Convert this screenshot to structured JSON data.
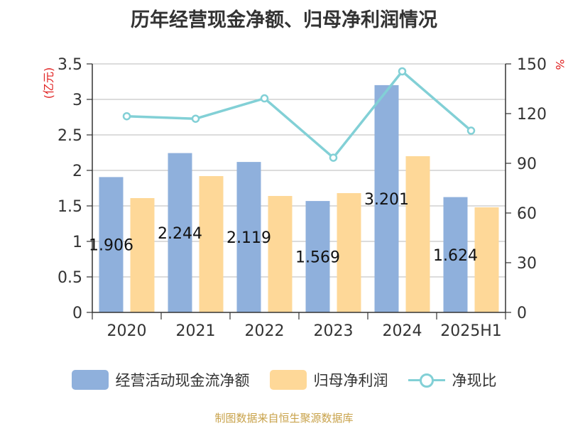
{
  "title": "历年经营现金净额、归母净利润情况",
  "source": "制图数据来自恒生聚源数据库",
  "chart_data": {
    "type": "bar",
    "categories": [
      "2020",
      "2021",
      "2022",
      "2023",
      "2024",
      "2025H1"
    ],
    "series": [
      {
        "name": "经营活动现金流净额",
        "type": "bar",
        "axis": "left",
        "color": "#8fb0dc",
        "values": [
          1.906,
          2.244,
          2.119,
          1.569,
          3.201,
          1.624
        ],
        "labels": [
          "1.906",
          "2.244",
          "2.119",
          "1.569",
          "3.201",
          "1.624"
        ]
      },
      {
        "name": "归母净利润",
        "type": "bar",
        "axis": "left",
        "color": "#fed898",
        "values": [
          1.61,
          1.92,
          1.64,
          1.68,
          2.2,
          1.48
        ]
      },
      {
        "name": "净现比",
        "type": "line",
        "axis": "right",
        "color": "#82d0d6",
        "values": [
          118.4,
          116.9,
          129.2,
          93.4,
          145.5,
          109.7
        ]
      }
    ],
    "y_left": {
      "label": "(亿元)",
      "ylim": [
        0,
        3.5
      ],
      "ticks": [
        0,
        0.5,
        1,
        1.5,
        2,
        2.5,
        3,
        3.5
      ],
      "tick_labels": [
        "0",
        "0.5",
        "1",
        "1.5",
        "2",
        "2.5",
        "3",
        "3.5"
      ]
    },
    "y_right": {
      "label": "%",
      "ylim": [
        0,
        150
      ],
      "ticks": [
        0,
        30,
        60,
        90,
        120,
        150
      ],
      "tick_labels": [
        "0",
        "30",
        "60",
        "90",
        "120",
        "150"
      ]
    },
    "grid": true,
    "legend_position": "bottom"
  }
}
